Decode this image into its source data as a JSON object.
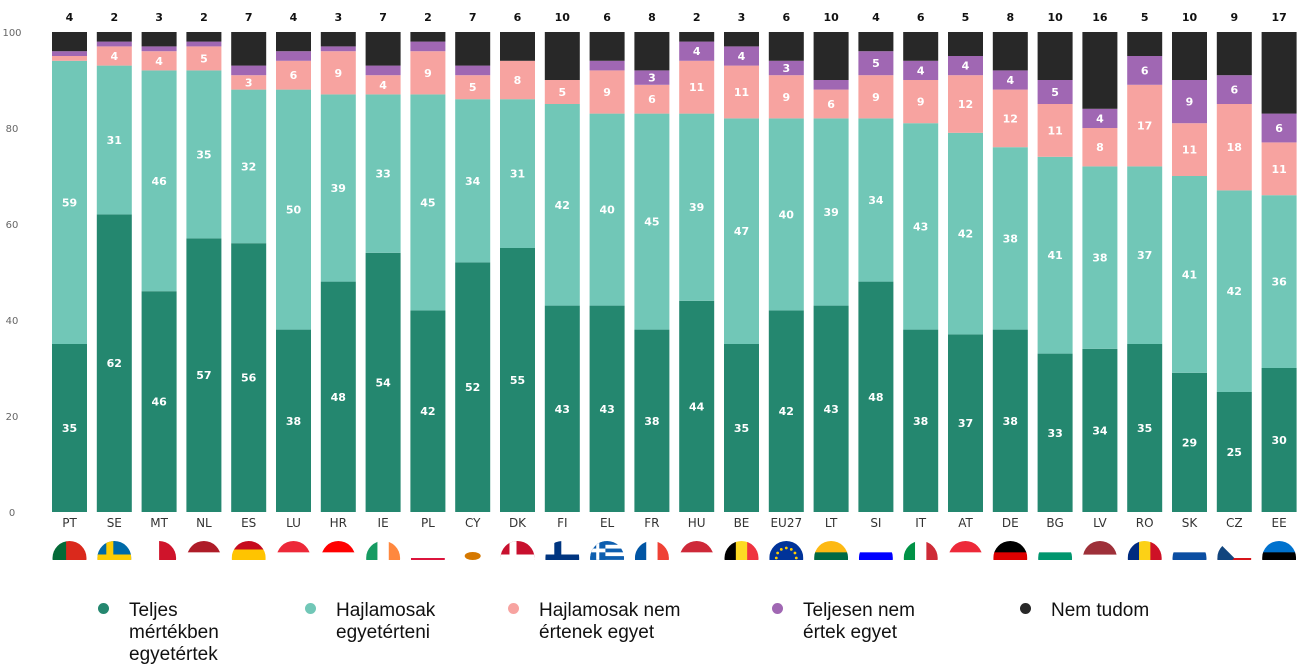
{
  "chart_data": {
    "type": "bar",
    "stacked": true,
    "categories": [
      "PT",
      "SE",
      "MT",
      "NL",
      "ES",
      "LU",
      "HR",
      "IE",
      "PL",
      "CY",
      "DK",
      "FI",
      "EL",
      "FR",
      "HU",
      "BE",
      "EU27",
      "LT",
      "SI",
      "IT",
      "AT",
      "DE",
      "BG",
      "LV",
      "RO",
      "SK",
      "CZ",
      "EE"
    ],
    "series": [
      {
        "name": "Teljes mértékben egyetértek",
        "color": "#24876f",
        "values": [
          35,
          62,
          46,
          57,
          56,
          38,
          48,
          54,
          42,
          52,
          55,
          43,
          43,
          38,
          44,
          35,
          42,
          43,
          48,
          38,
          37,
          38,
          33,
          34,
          35,
          29,
          25,
          30
        ]
      },
      {
        "name": "Hajlamosak egyetérteni",
        "color": "#71c7b7",
        "values": [
          59,
          31,
          46,
          35,
          32,
          50,
          39,
          33,
          45,
          34,
          31,
          42,
          40,
          45,
          39,
          47,
          40,
          39,
          34,
          43,
          42,
          38,
          41,
          38,
          37,
          41,
          42,
          36
        ]
      },
      {
        "name": "Hajlamosak nem értenek egyet",
        "color": "#f7a3a0",
        "values": [
          1,
          4,
          4,
          5,
          3,
          6,
          9,
          4,
          9,
          5,
          8,
          5,
          9,
          6,
          11,
          11,
          9,
          6,
          9,
          9,
          12,
          12,
          11,
          8,
          17,
          11,
          18,
          11
        ]
      },
      {
        "name": "Teljesen nem értek egyet",
        "color": "#a067b3",
        "values": [
          1,
          1,
          1,
          1,
          2,
          2,
          1,
          2,
          2,
          2,
          0,
          0,
          2,
          3,
          4,
          4,
          3,
          2,
          5,
          4,
          4,
          4,
          5,
          4,
          6,
          9,
          6,
          6
        ]
      },
      {
        "name": "Nem tudom",
        "color": "#282828",
        "values": [
          4,
          2,
          3,
          2,
          7,
          4,
          3,
          7,
          2,
          7,
          6,
          10,
          6,
          8,
          2,
          3,
          6,
          10,
          4,
          6,
          5,
          8,
          10,
          16,
          5,
          10,
          9,
          17
        ]
      }
    ],
    "top_labels": [
      "4",
      "2",
      "3",
      "2",
      "7",
      "4",
      "3",
      "7",
      "2",
      "7",
      "6",
      "10",
      "6",
      "8",
      "2",
      "3",
      "6",
      "10",
      "4",
      "6",
      "5",
      "8",
      "10",
      "16",
      "5",
      "10",
      "9",
      "17"
    ],
    "segment_labels": [
      [
        "35",
        "59",
        "",
        "",
        ""
      ],
      [
        "62",
        "31",
        "4",
        "",
        ""
      ],
      [
        "46",
        "46",
        "4",
        "",
        ""
      ],
      [
        "57",
        "35",
        "5",
        "",
        ""
      ],
      [
        "56",
        "32",
        "3",
        "",
        ""
      ],
      [
        "38",
        "50",
        "6",
        "",
        ""
      ],
      [
        "48",
        "39",
        "9",
        "",
        ""
      ],
      [
        "54",
        "33",
        "4",
        "",
        ""
      ],
      [
        "42",
        "45",
        "9",
        "",
        ""
      ],
      [
        "52",
        "34",
        "5",
        "",
        ""
      ],
      [
        "55",
        "31",
        "8",
        "",
        ""
      ],
      [
        "43",
        "42",
        "5",
        "",
        ""
      ],
      [
        "43",
        "40",
        "9",
        "",
        ""
      ],
      [
        "38",
        "45",
        "6",
        "3",
        ""
      ],
      [
        "44",
        "39",
        "11",
        "4",
        ""
      ],
      [
        "35",
        "47",
        "11",
        "4",
        ""
      ],
      [
        "42",
        "40",
        "9",
        "3",
        ""
      ],
      [
        "43",
        "39",
        "6",
        "",
        ""
      ],
      [
        "48",
        "34",
        "9",
        "5",
        ""
      ],
      [
        "38",
        "43",
        "9",
        "4",
        ""
      ],
      [
        "37",
        "42",
        "12",
        "4",
        ""
      ],
      [
        "38",
        "38",
        "12",
        "4",
        ""
      ],
      [
        "33",
        "41",
        "11",
        "5",
        ""
      ],
      [
        "34",
        "38",
        "8",
        "4",
        ""
      ],
      [
        "35",
        "37",
        "17",
        "6",
        ""
      ],
      [
        "29",
        "41",
        "11",
        "9",
        ""
      ],
      [
        "25",
        "42",
        "18",
        "6",
        ""
      ],
      [
        "30",
        "36",
        "11",
        "6",
        ""
      ]
    ],
    "yticks": [
      "0",
      "20",
      "40",
      "60",
      "80",
      "100"
    ],
    "ylim": [
      0,
      100
    ],
    "grid": false,
    "legend_position": "bottom",
    "flags": [
      "portugal",
      "sweden",
      "malta",
      "netherlands",
      "spain",
      "luxembourg",
      "croatia",
      "ireland",
      "poland",
      "cyprus",
      "denmark",
      "finland",
      "greece",
      "france",
      "hungary",
      "belgium",
      "european-union",
      "lithuania",
      "slovenia",
      "italy",
      "austria",
      "germany",
      "bulgaria",
      "latvia",
      "romania",
      "slovakia",
      "czechia",
      "estonia"
    ]
  },
  "legend": [
    {
      "lines": [
        "Teljes",
        "mértékben",
        "egyetértek"
      ],
      "color": "#24876f"
    },
    {
      "lines": [
        "Hajlamosak",
        "egyetérteni"
      ],
      "color": "#71c7b7"
    },
    {
      "lines": [
        "Hajlamosak nem",
        "értenek egyet"
      ],
      "color": "#f7a3a0"
    },
    {
      "lines": [
        "Teljesen nem",
        "értek egyet"
      ],
      "color": "#a067b3"
    },
    {
      "lines": [
        "Nem tudom"
      ],
      "color": "#282828"
    }
  ]
}
